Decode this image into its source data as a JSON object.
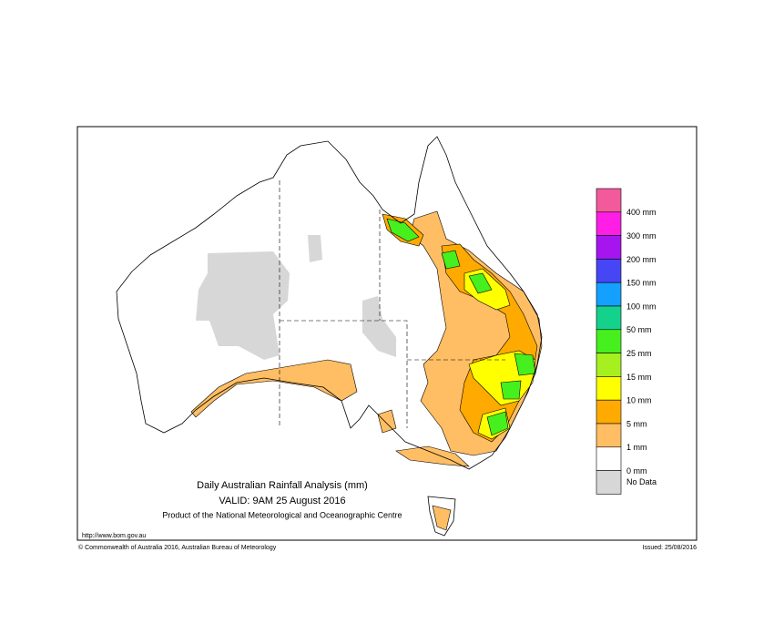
{
  "map": {
    "title": "Daily Australian Rainfall Analysis (mm)",
    "valid": "VALID: 9AM 25 August 2016",
    "product": "Product of the National Meteorological and Oceanographic Centre",
    "url": "http://www.bom.gov.au",
    "copyright": "© Commonwealth of Australia 2016, Australian Bureau of Meteorology",
    "issued": "Issued: 25/08/2016",
    "legend": {
      "colors": [
        "#f25a9c",
        "#ff1ee6",
        "#a614f0",
        "#4646f5",
        "#14a0ff",
        "#14d28c",
        "#46f01e",
        "#a5f01e",
        "#ffff00",
        "#ffaa00",
        "#ffbe64",
        "#ffffff",
        "#d7d7d7"
      ],
      "labels": [
        "400 mm",
        "300 mm",
        "200 mm",
        "150 mm",
        "100 mm",
        "50 mm",
        "25 mm",
        "15 mm",
        "10 mm",
        "5 mm",
        "1 mm",
        "0 mm"
      ],
      "no_data": "No Data"
    }
  }
}
